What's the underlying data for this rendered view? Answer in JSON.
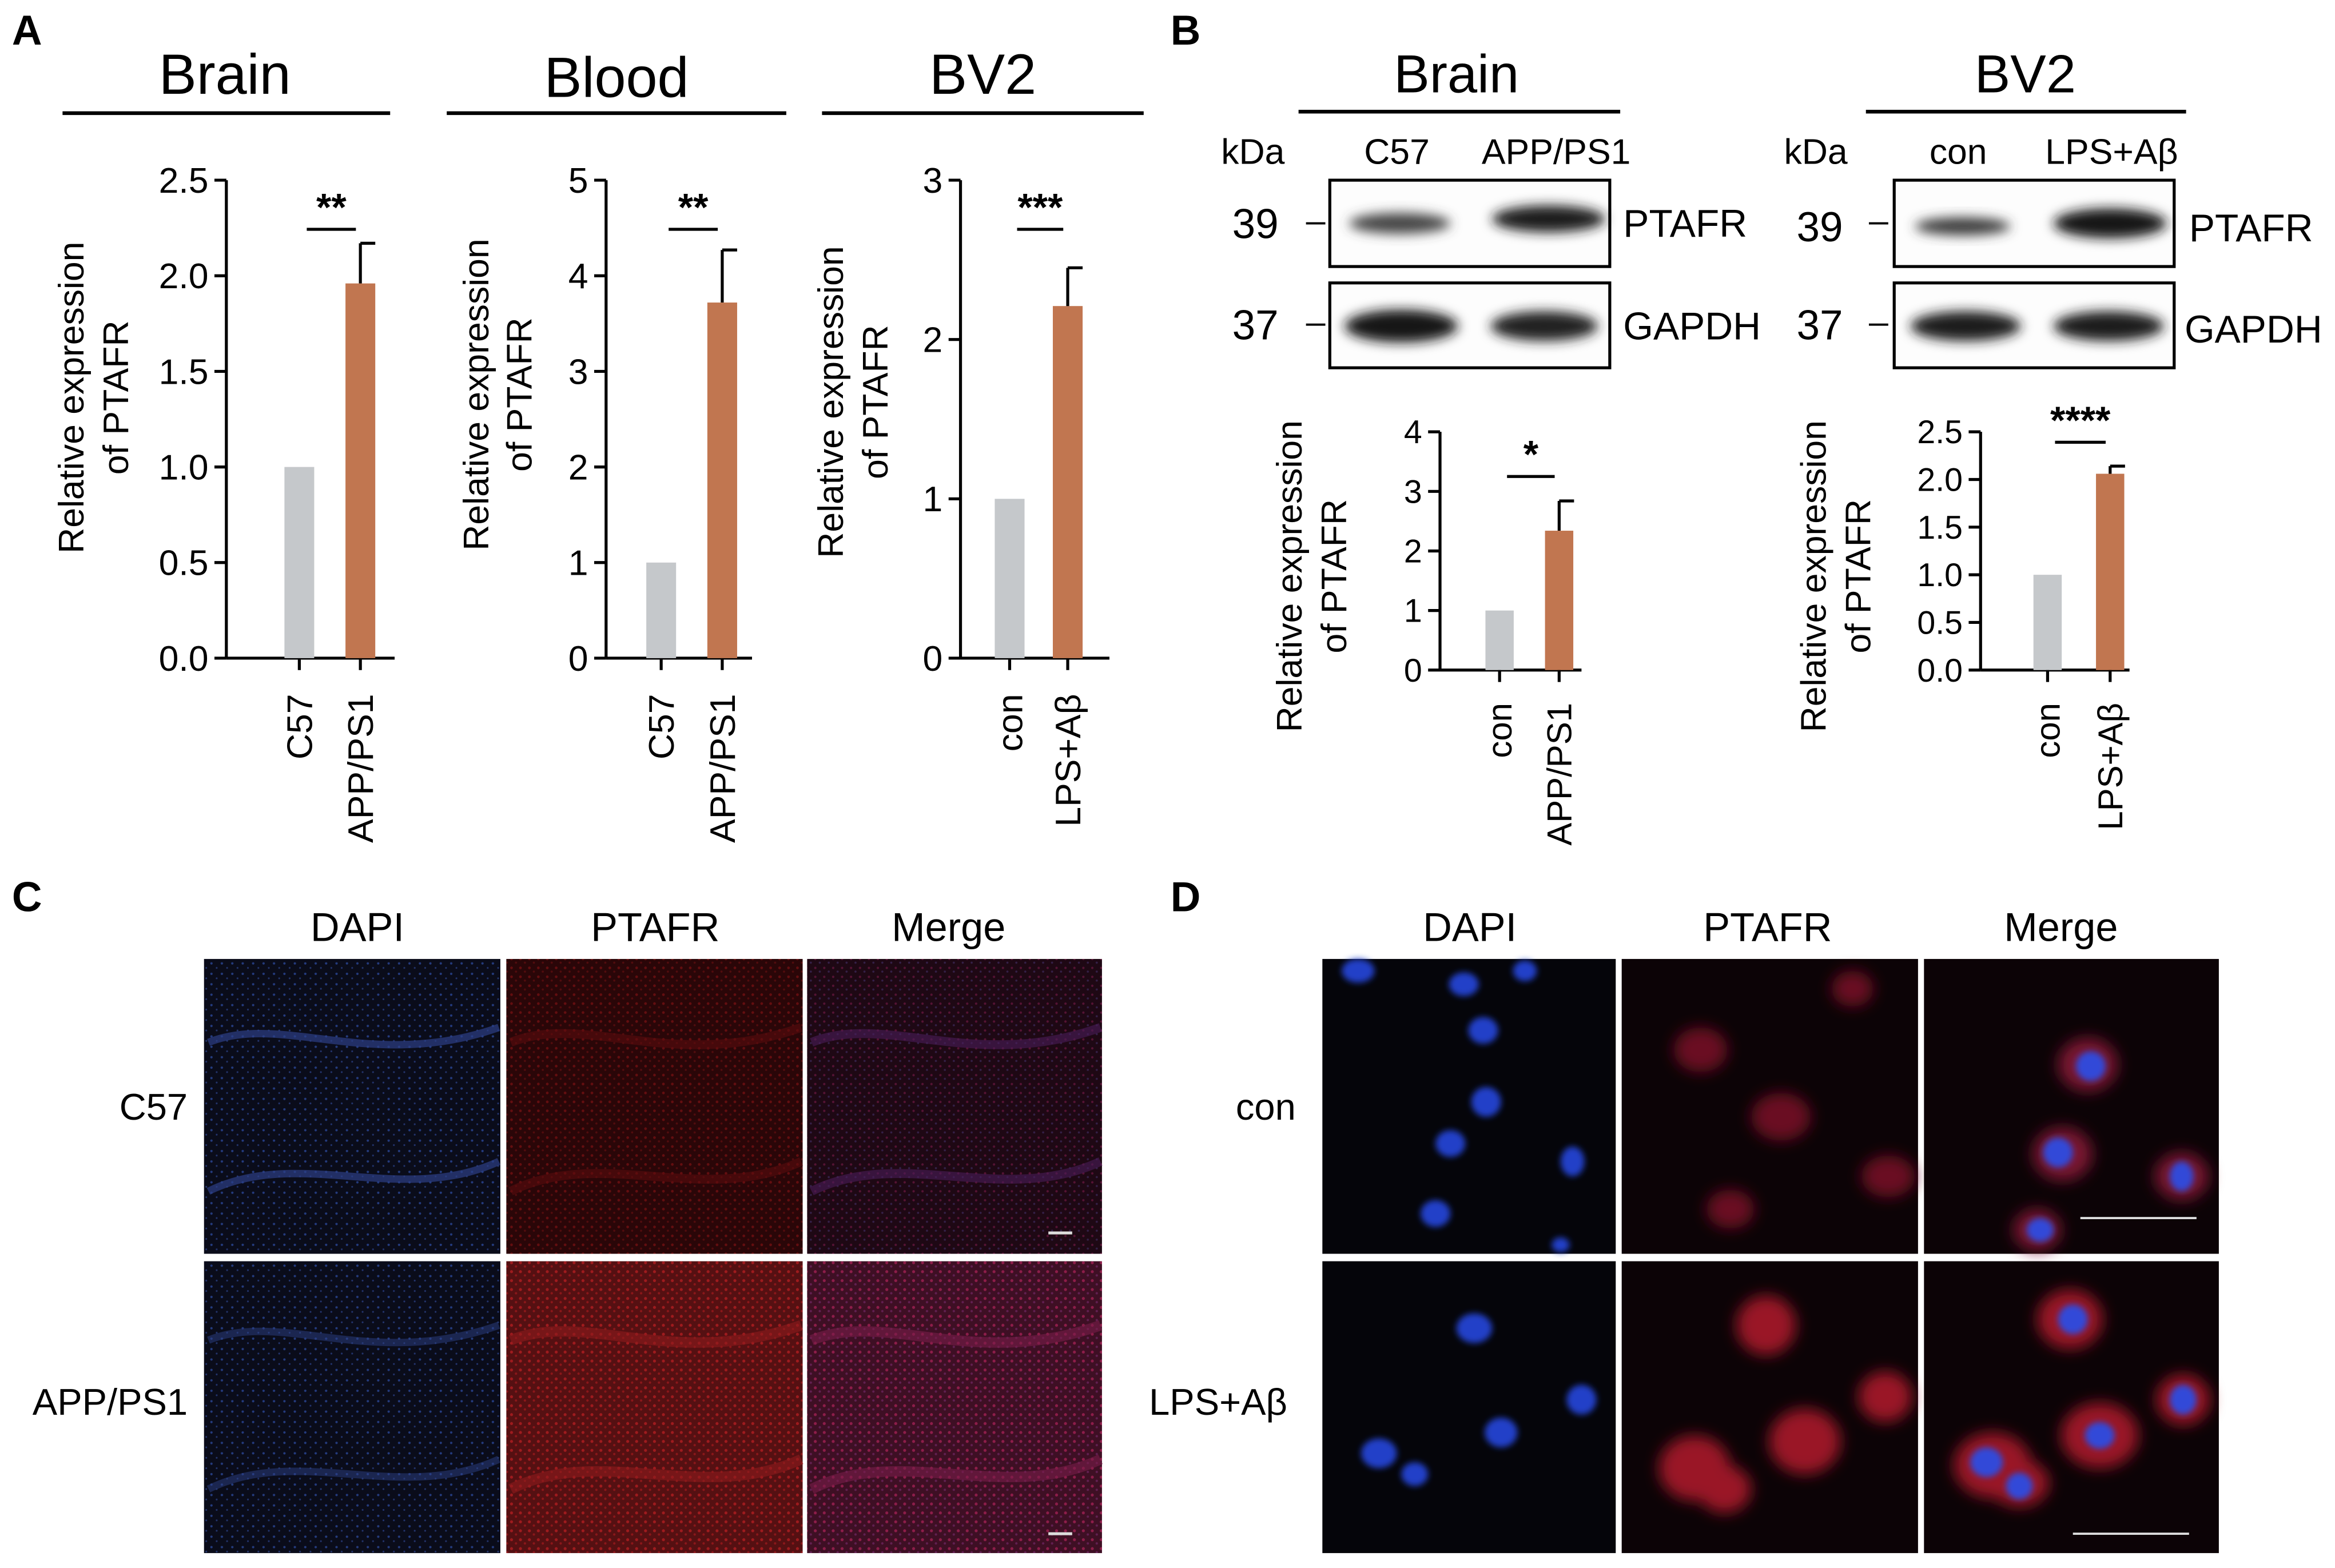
{
  "panel_letters": {
    "a": "A",
    "b": "B",
    "c": "C",
    "d": "D"
  },
  "colors": {
    "control_bar": "#c5c8cb",
    "treated_bar": "#c17650",
    "axis": "#000000"
  },
  "panelA": {
    "ylabel_line1": "Relative expression",
    "ylabel_line2": "of PTAFR",
    "charts": [
      {
        "title": "Brain",
        "sig": "**"
      },
      {
        "title": "Blood",
        "sig": "**"
      },
      {
        "title": "BV2",
        "sig": "***"
      }
    ]
  },
  "panelB": {
    "kda_label": "kDa",
    "brain": {
      "title": "Brain",
      "lane1": "C57",
      "lane2": "APP/PS1",
      "mw_target": "39",
      "mw_control": "37",
      "target": "PTAFR",
      "loading": "GAPDH",
      "sig": "*"
    },
    "bv2": {
      "title": "BV2",
      "lane1": "con",
      "lane2": "LPS+Aβ",
      "mw_target": "39",
      "mw_control": "37",
      "target": "PTAFR",
      "loading": "GAPDH",
      "sig": "****"
    },
    "ylabel_line1": "Relative expression",
    "ylabel_line2": "of PTAFR"
  },
  "panelC": {
    "columns": [
      "DAPI",
      "PTAFR",
      "Merge"
    ],
    "rows": [
      "C57",
      "APP/PS1"
    ]
  },
  "panelD": {
    "columns": [
      "DAPI",
      "PTAFR",
      "Merge"
    ],
    "rows": [
      "con",
      "LPS+Aβ"
    ]
  },
  "chart_data": [
    {
      "type": "bar",
      "title": "Brain",
      "ylabel": "Relative expression of PTAFR",
      "categories": [
        "C57",
        "APP/PS1"
      ],
      "values": [
        1.0,
        1.96
      ],
      "errors": [
        0,
        0.21
      ],
      "ylim": [
        0,
        2.5
      ],
      "yticks": [
        "0.0",
        "0.5",
        "1.0",
        "1.5",
        "2.0",
        "2.5"
      ],
      "significance": "**"
    },
    {
      "type": "bar",
      "title": "Blood",
      "ylabel": "Relative expression of PTAFR",
      "categories": [
        "C57",
        "APP/PS1"
      ],
      "values": [
        1.0,
        3.72
      ],
      "errors": [
        0,
        0.55
      ],
      "ylim": [
        0,
        5
      ],
      "yticks": [
        "0",
        "1",
        "2",
        "3",
        "4",
        "5"
      ],
      "significance": "**"
    },
    {
      "type": "bar",
      "title": "BV2",
      "ylabel": "Relative expression of PTAFR",
      "categories": [
        "con",
        "LPS+Aβ"
      ],
      "values": [
        1.0,
        2.21
      ],
      "errors": [
        0,
        0.24
      ],
      "ylim": [
        0,
        3
      ],
      "yticks": [
        "0",
        "1",
        "2",
        "3"
      ],
      "significance": "***"
    },
    {
      "type": "bar",
      "ylabel": "Relative expression of PTAFR",
      "categories": [
        "con",
        "APP/PS1"
      ],
      "values": [
        1.0,
        2.34
      ],
      "errors": [
        0,
        0.5
      ],
      "ylim": [
        0,
        4
      ],
      "yticks": [
        "0",
        "1",
        "2",
        "3",
        "4"
      ],
      "significance": "*"
    },
    {
      "type": "bar",
      "ylabel": "Relative expression of PTAFR",
      "categories": [
        "con",
        "LPS+Aβ"
      ],
      "values": [
        1.0,
        2.06
      ],
      "errors": [
        0,
        0.08
      ],
      "ylim": [
        0,
        2.5
      ],
      "yticks": [
        "0.0",
        "0.5",
        "1.0",
        "1.5",
        "2.0",
        "2.5"
      ],
      "significance": "****"
    }
  ]
}
